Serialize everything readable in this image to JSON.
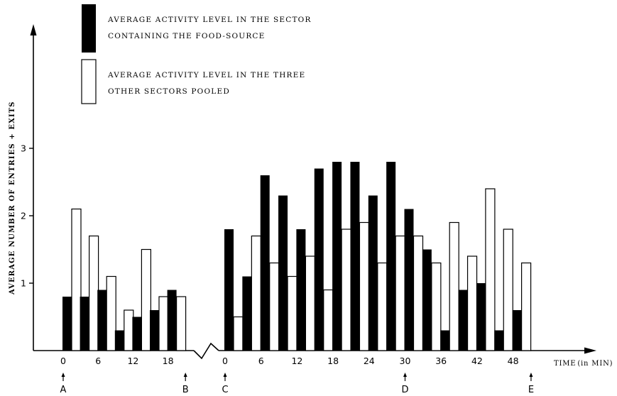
{
  "chart_data": {
    "type": "bar",
    "ylabel": "AVERAGE NUMBER OF ENTRIES + EXITS",
    "xlabel_text": "TIME",
    "xlabel_unit": "(in MIN)",
    "ylim": [
      0,
      4.9
    ],
    "yticks": [
      1,
      2,
      3
    ],
    "grid": false,
    "legend_position": "top-left",
    "legend": [
      {
        "fill": "black",
        "line1": "AVERAGE ACTIVITY LEVEL IN THE SECTOR",
        "line2": "CONTAINING THE FOOD-SOURCE"
      },
      {
        "fill": "white",
        "line1": "AVERAGE ACTIVITY LEVEL IN THE THREE",
        "line2": "OTHER SECTORS POOLED"
      }
    ],
    "series": [
      {
        "fill": "black"
      },
      {
        "fill": "white"
      }
    ],
    "segments": [
      {
        "tick_labels": [
          "0",
          "6",
          "12",
          "18"
        ],
        "tick_values": [
          0,
          6,
          12,
          18
        ],
        "x": [
          0,
          3,
          6,
          9,
          12,
          15,
          18
        ],
        "values": [
          [
            0.8,
            0.8,
            0.9,
            0.3,
            0.5,
            0.6,
            0.9
          ],
          [
            2.1,
            1.7,
            1.1,
            0.6,
            1.5,
            0.8,
            0.8
          ]
        ]
      },
      {
        "tick_labels": [
          "0",
          "6",
          "12",
          "18",
          "24",
          "30",
          "36",
          "42",
          "48"
        ],
        "tick_values": [
          0,
          6,
          12,
          18,
          24,
          30,
          36,
          42,
          48
        ],
        "x": [
          0,
          3,
          6,
          9,
          12,
          15,
          18,
          21,
          24,
          27,
          30,
          33,
          36,
          39,
          42,
          45,
          48
        ],
        "values": [
          [
            1.8,
            1.1,
            2.6,
            2.3,
            1.8,
            2.7,
            2.8,
            2.8,
            2.3,
            2.8,
            2.1,
            1.5,
            0.3,
            0.9,
            1.0,
            0.3,
            0.6
          ],
          [
            0.5,
            1.7,
            1.3,
            1.1,
            1.4,
            0.9,
            1.8,
            1.9,
            1.3,
            1.7,
            1.7,
            1.3,
            1.9,
            1.4,
            2.4,
            1.8,
            1.3
          ]
        ]
      }
    ],
    "markers": [
      {
        "label": "A",
        "segment": 0,
        "at": 0
      },
      {
        "label": "B",
        "segment": 0,
        "at": 21
      },
      {
        "label": "C",
        "segment": 1,
        "at": 0
      },
      {
        "label": "D",
        "segment": 1,
        "at": 30
      },
      {
        "label": "E",
        "segment": 1,
        "at": 51
      }
    ]
  }
}
